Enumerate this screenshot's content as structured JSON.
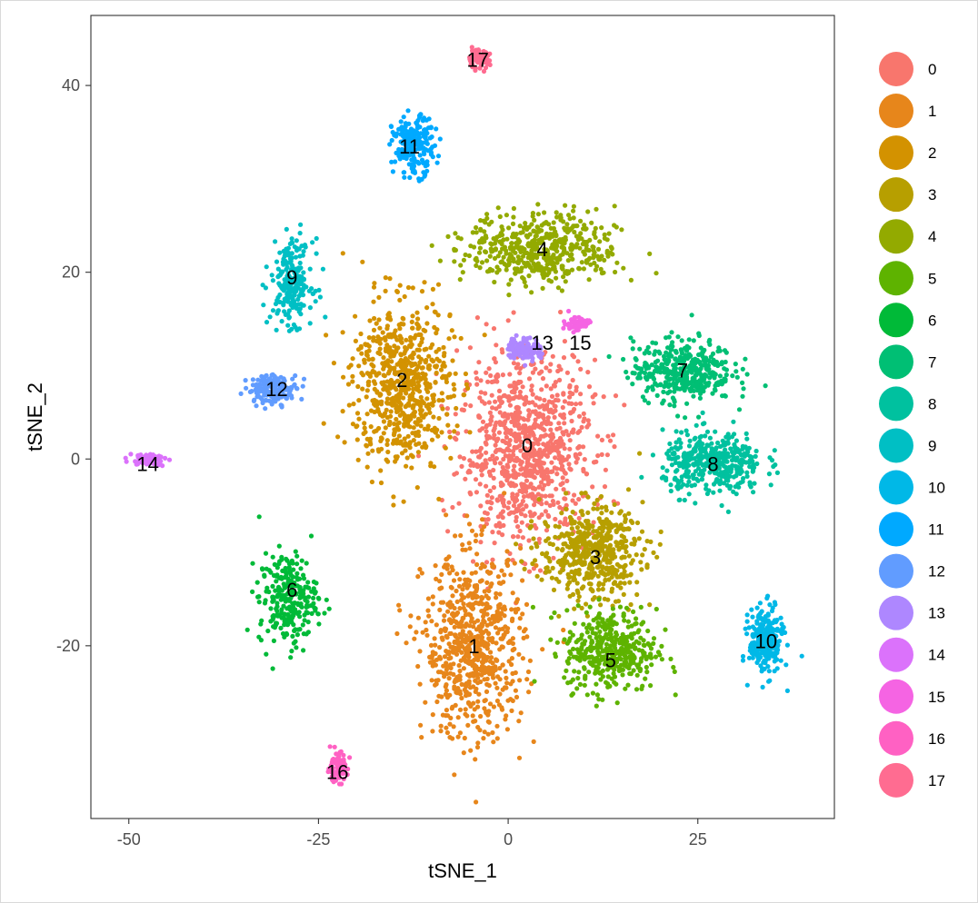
{
  "chart_data": {
    "type": "scatter",
    "xlabel": "tSNE_1",
    "ylabel": "tSNE_2",
    "xlim": [
      -55,
      43
    ],
    "ylim": [
      -38.5,
      47.5
    ],
    "xticks": [
      -50,
      -25,
      0,
      25
    ],
    "yticks": [
      -20,
      0,
      20,
      40
    ],
    "xtick_labels": [
      "-50",
      "-25",
      "0",
      "25"
    ],
    "ytick_labels": [
      "-20",
      "0",
      "20",
      "40"
    ],
    "grid": false,
    "legend_position": "right",
    "series": [
      {
        "name": "0",
        "color": "#F8766D",
        "center": [
          2.5,
          1.0
        ],
        "label_at": [
          2.5,
          1.5
        ],
        "spread": [
          8,
          9
        ],
        "n": 900
      },
      {
        "name": "1",
        "color": "#E7861B",
        "center": [
          -4.5,
          -20.0
        ],
        "label_at": [
          -4.5,
          -20.0
        ],
        "spread": [
          6,
          9
        ],
        "n": 700
      },
      {
        "name": "2",
        "color": "#D39200",
        "center": [
          -14.0,
          8.0
        ],
        "label_at": [
          -14.0,
          8.5
        ],
        "spread": [
          6,
          8
        ],
        "n": 650
      },
      {
        "name": "3",
        "color": "#B79F00",
        "center": [
          11.0,
          -10.0
        ],
        "label_at": [
          11.5,
          -10.5
        ],
        "spread": [
          6,
          4.5
        ],
        "n": 500
      },
      {
        "name": "4",
        "color": "#93AA00",
        "center": [
          4.5,
          22.5
        ],
        "label_at": [
          4.5,
          22.5
        ],
        "spread": [
          9,
          3.5
        ],
        "n": 500
      },
      {
        "name": "5",
        "color": "#5EB300",
        "center": [
          13.5,
          -20.5
        ],
        "label_at": [
          13.5,
          -21.5
        ],
        "spread": [
          5.5,
          4
        ],
        "n": 400
      },
      {
        "name": "6",
        "color": "#00BA38",
        "center": [
          -29.0,
          -15.0
        ],
        "label_at": [
          -28.5,
          -14.0
        ],
        "spread": [
          3.5,
          4.5
        ],
        "n": 260
      },
      {
        "name": "7",
        "color": "#00BF74",
        "center": [
          23.0,
          9.5
        ],
        "label_at": [
          23.0,
          9.5
        ],
        "spread": [
          6,
          3
        ],
        "n": 400
      },
      {
        "name": "8",
        "color": "#00C19F",
        "center": [
          27.0,
          -0.5
        ],
        "label_at": [
          27.0,
          -0.5
        ],
        "spread": [
          6,
          3
        ],
        "n": 400
      },
      {
        "name": "9",
        "color": "#00BFC4",
        "center": [
          -28.5,
          19.0
        ],
        "label_at": [
          -28.5,
          19.5
        ],
        "spread": [
          2.5,
          4
        ],
        "n": 220
      },
      {
        "name": "10",
        "color": "#00B8E7",
        "center": [
          34.0,
          -19.5
        ],
        "label_at": [
          34.0,
          -19.5
        ],
        "spread": [
          2,
          3.2
        ],
        "n": 260
      },
      {
        "name": "11",
        "color": "#00A9FF",
        "center": [
          -12.5,
          33.5
        ],
        "label_at": [
          -13.0,
          33.5
        ],
        "spread": [
          2.5,
          2.8
        ],
        "n": 200
      },
      {
        "name": "12",
        "color": "#619CFF",
        "center": [
          -31.0,
          7.5
        ],
        "label_at": [
          -30.5,
          7.5
        ],
        "spread": [
          3,
          1.4
        ],
        "n": 160
      },
      {
        "name": "13",
        "color": "#AE87FF",
        "center": [
          2.0,
          11.8
        ],
        "label_at": [
          4.5,
          12.5
        ],
        "spread": [
          2,
          1.1
        ],
        "n": 110
      },
      {
        "name": "14",
        "color": "#DB72FB",
        "center": [
          -47.5,
          0.0
        ],
        "label_at": [
          -47.5,
          -0.5
        ],
        "spread": [
          2.2,
          0.6
        ],
        "n": 70
      },
      {
        "name": "15",
        "color": "#F564E3",
        "center": [
          9.0,
          14.5
        ],
        "label_at": [
          9.5,
          12.5
        ],
        "spread": [
          1.5,
          0.8
        ],
        "n": 60
      },
      {
        "name": "16",
        "color": "#FF61C3",
        "center": [
          -22.5,
          -33.0
        ],
        "label_at": [
          -22.5,
          -33.5
        ],
        "spread": [
          1.2,
          1.4
        ],
        "n": 90
      },
      {
        "name": "17",
        "color": "#FF6C91",
        "center": [
          -4.0,
          42.8
        ],
        "label_at": [
          -4.0,
          42.8
        ],
        "spread": [
          1.4,
          0.9
        ],
        "n": 80
      }
    ]
  }
}
